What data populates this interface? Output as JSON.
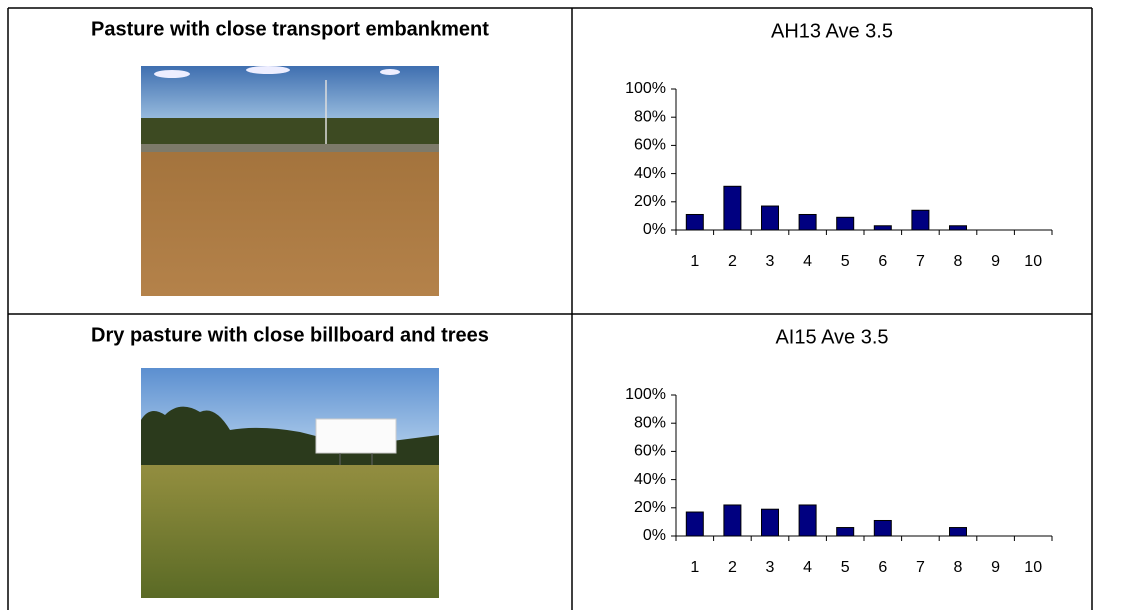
{
  "rows": [
    {
      "heading": "Pasture with close transport embankment"
    },
    {
      "heading": "Dry pasture with close billboard and trees"
    }
  ],
  "chart_data": [
    {
      "type": "bar",
      "title": "AH13 Ave 3.5",
      "categories": [
        "1",
        "2",
        "3",
        "4",
        "5",
        "6",
        "7",
        "8",
        "9",
        "10"
      ],
      "values": [
        11,
        31,
        17,
        11,
        9,
        3,
        14,
        3,
        0,
        0
      ],
      "color": "#000080",
      "ylim": [
        0,
        100
      ],
      "yticks": [
        {
          "value": 0,
          "label": "0%"
        },
        {
          "value": 20,
          "label": "20%"
        },
        {
          "value": 40,
          "label": "40%"
        },
        {
          "value": 60,
          "label": "60%"
        },
        {
          "value": 80,
          "label": "80%"
        },
        {
          "value": 100,
          "label": "100%"
        }
      ]
    },
    {
      "type": "bar",
      "title": "AI15 Ave 3.5",
      "categories": [
        "1",
        "2",
        "3",
        "4",
        "5",
        "6",
        "7",
        "8",
        "9",
        "10"
      ],
      "values": [
        17,
        22,
        19,
        22,
        6,
        11,
        0,
        6,
        0,
        0
      ],
      "color": "#000080",
      "ylim": [
        0,
        100
      ],
      "yticks": [
        {
          "value": 0,
          "label": "0%"
        },
        {
          "value": 20,
          "label": "20%"
        },
        {
          "value": 40,
          "label": "40%"
        },
        {
          "value": 60,
          "label": "60%"
        },
        {
          "value": 80,
          "label": "80%"
        },
        {
          "value": 100,
          "label": "100%"
        }
      ]
    }
  ]
}
